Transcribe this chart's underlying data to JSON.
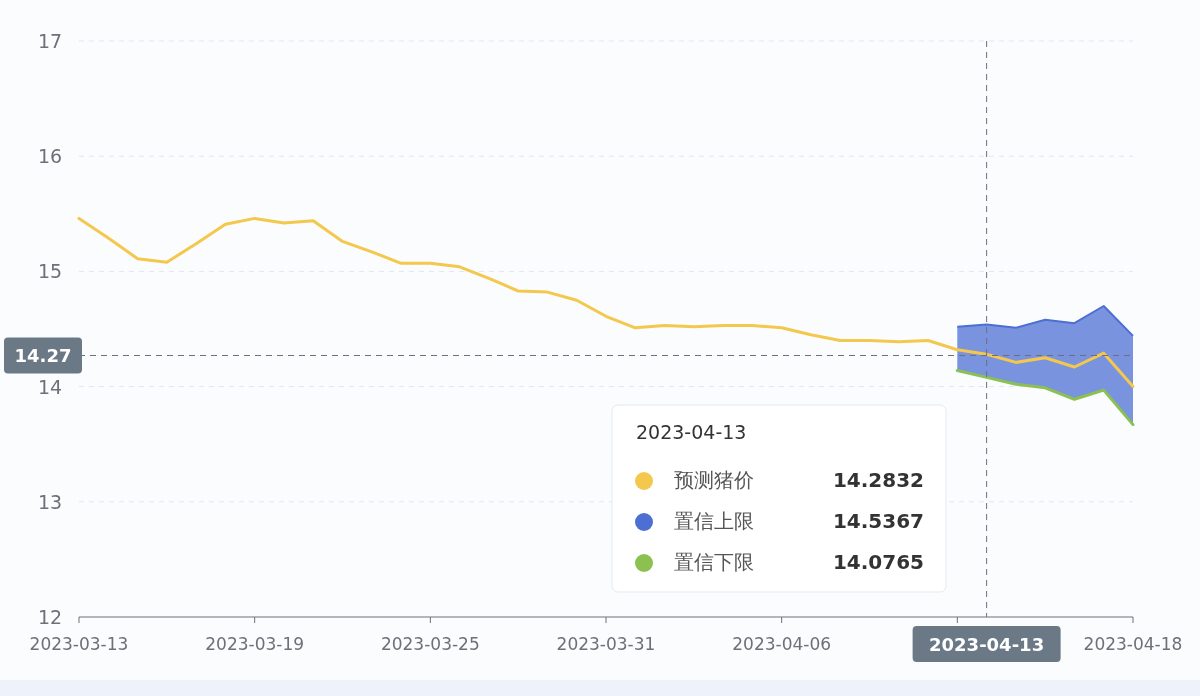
{
  "chart_data": {
    "type": "line",
    "x": [
      "2023-03-13",
      "2023-03-14",
      "2023-03-15",
      "2023-03-16",
      "2023-03-17",
      "2023-03-18",
      "2023-03-19",
      "2023-03-20",
      "2023-03-21",
      "2023-03-22",
      "2023-03-23",
      "2023-03-24",
      "2023-03-25",
      "2023-03-26",
      "2023-03-27",
      "2023-03-28",
      "2023-03-29",
      "2023-03-30",
      "2023-03-31",
      "2023-04-01",
      "2023-04-02",
      "2023-04-03",
      "2023-04-04",
      "2023-04-05",
      "2023-04-06",
      "2023-04-07",
      "2023-04-08",
      "2023-04-09",
      "2023-04-10",
      "2023-04-11",
      "2023-04-12",
      "2023-04-13",
      "2023-04-14",
      "2023-04-15",
      "2023-04-16",
      "2023-04-17",
      "2023-04-18"
    ],
    "series": [
      {
        "name": "预测猪价",
        "color": "#f4c84c",
        "values": [
          15.46,
          15.29,
          15.11,
          15.08,
          15.24,
          15.41,
          15.46,
          15.42,
          15.44,
          15.26,
          15.17,
          15.07,
          15.07,
          15.04,
          14.94,
          14.83,
          14.82,
          14.75,
          14.61,
          14.51,
          14.53,
          14.52,
          14.53,
          14.53,
          14.51,
          14.45,
          14.4,
          14.4,
          14.39,
          14.4,
          14.32,
          14.28,
          14.21,
          14.25,
          14.17,
          14.29,
          14.0
        ]
      },
      {
        "name": "置信上限",
        "type": "area",
        "color": "#4d6fd3",
        "x": [
          "2023-04-12",
          "2023-04-13",
          "2023-04-14",
          "2023-04-15",
          "2023-04-16",
          "2023-04-17",
          "2023-04-18"
        ],
        "values": [
          14.52,
          14.54,
          14.51,
          14.58,
          14.55,
          14.7,
          14.44
        ]
      },
      {
        "name": "置信下限",
        "color": "#8cc152",
        "x": [
          "2023-04-12",
          "2023-04-13",
          "2023-04-14",
          "2023-04-15",
          "2023-04-16",
          "2023-04-17",
          "2023-04-18"
        ],
        "values": [
          14.14,
          14.08,
          14.02,
          13.99,
          13.89,
          13.97,
          13.67
        ]
      }
    ],
    "xlim": [
      "2023-03-13",
      "2023-04-18"
    ],
    "xticks": [
      "2023-03-13",
      "2023-03-19",
      "2023-03-25",
      "2023-03-31",
      "2023-04-06",
      {
        "value": "2023-04-12",
        "label": null
      },
      "2023-04-18"
    ],
    "ylim": [
      12,
      17
    ],
    "yticks": [
      12,
      13,
      14,
      15,
      16,
      17
    ],
    "grid": "y",
    "legend": "bottom",
    "ref_lines": [
      {
        "axis": "y",
        "value": 14.27,
        "label": "14.27",
        "line_style": "dashed"
      },
      {
        "axis": "x",
        "value": "2023-04-13",
        "label": "2023-04-13",
        "line_style": "dashed"
      }
    ],
    "annotations": [
      "2023-04-13",
      "14.2832",
      "14.5367",
      "14.0765"
    ]
  }
}
